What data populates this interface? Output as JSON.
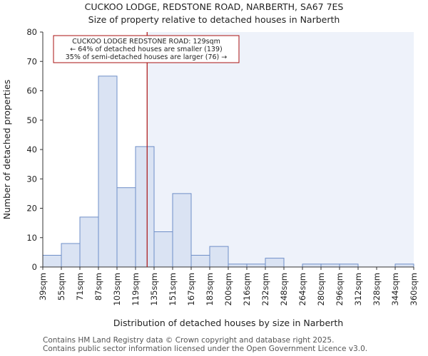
{
  "chart_data": {
    "type": "bar",
    "title": [
      "CUCKOO LODGE, REDSTONE ROAD, NARBERTH, SA67 7ES",
      "Size of property relative to detached houses in Narberth"
    ],
    "xlabel": "Distribution of detached houses by size in Narberth",
    "ylabel": "Number of detached properties",
    "ylim": [
      0,
      80
    ],
    "yticks": [
      0,
      10,
      20,
      30,
      40,
      50,
      60,
      70,
      80
    ],
    "bin_edges": [
      39,
      55,
      71,
      87,
      103,
      119,
      135,
      151,
      167,
      183,
      200,
      216,
      232,
      248,
      264,
      280,
      296,
      312,
      328,
      344,
      360
    ],
    "tick_labels": [
      "39sqm",
      "55sqm",
      "71sqm",
      "87sqm",
      "103sqm",
      "119sqm",
      "135sqm",
      "151sqm",
      "167sqm",
      "183sqm",
      "200sqm",
      "216sqm",
      "232sqm",
      "248sqm",
      "264sqm",
      "280sqm",
      "296sqm",
      "312sqm",
      "328sqm",
      "344sqm",
      "360sqm"
    ],
    "values": [
      4,
      8,
      17,
      65,
      27,
      41,
      12,
      25,
      4,
      7,
      1,
      1,
      3,
      0,
      1,
      1,
      1,
      0,
      0,
      1
    ],
    "property_value": 129,
    "annotation": [
      "CUCKOO LODGE REDSTONE ROAD: 129sqm",
      "← 64% of detached houses are smaller (139)",
      "35% of semi-detached houses are larger (76) →"
    ],
    "colors": {
      "bar_fill": "#dae3f3",
      "bar_stroke": "#6f8fc8",
      "highlight_bg": "#eef2fa",
      "marker_line": "#aa1111",
      "annotation_border": "#aa1111"
    }
  },
  "footer": [
    "Contains HM Land Registry data © Crown copyright and database right 2025.",
    "Contains public sector information licensed under the Open Government Licence v3.0."
  ]
}
